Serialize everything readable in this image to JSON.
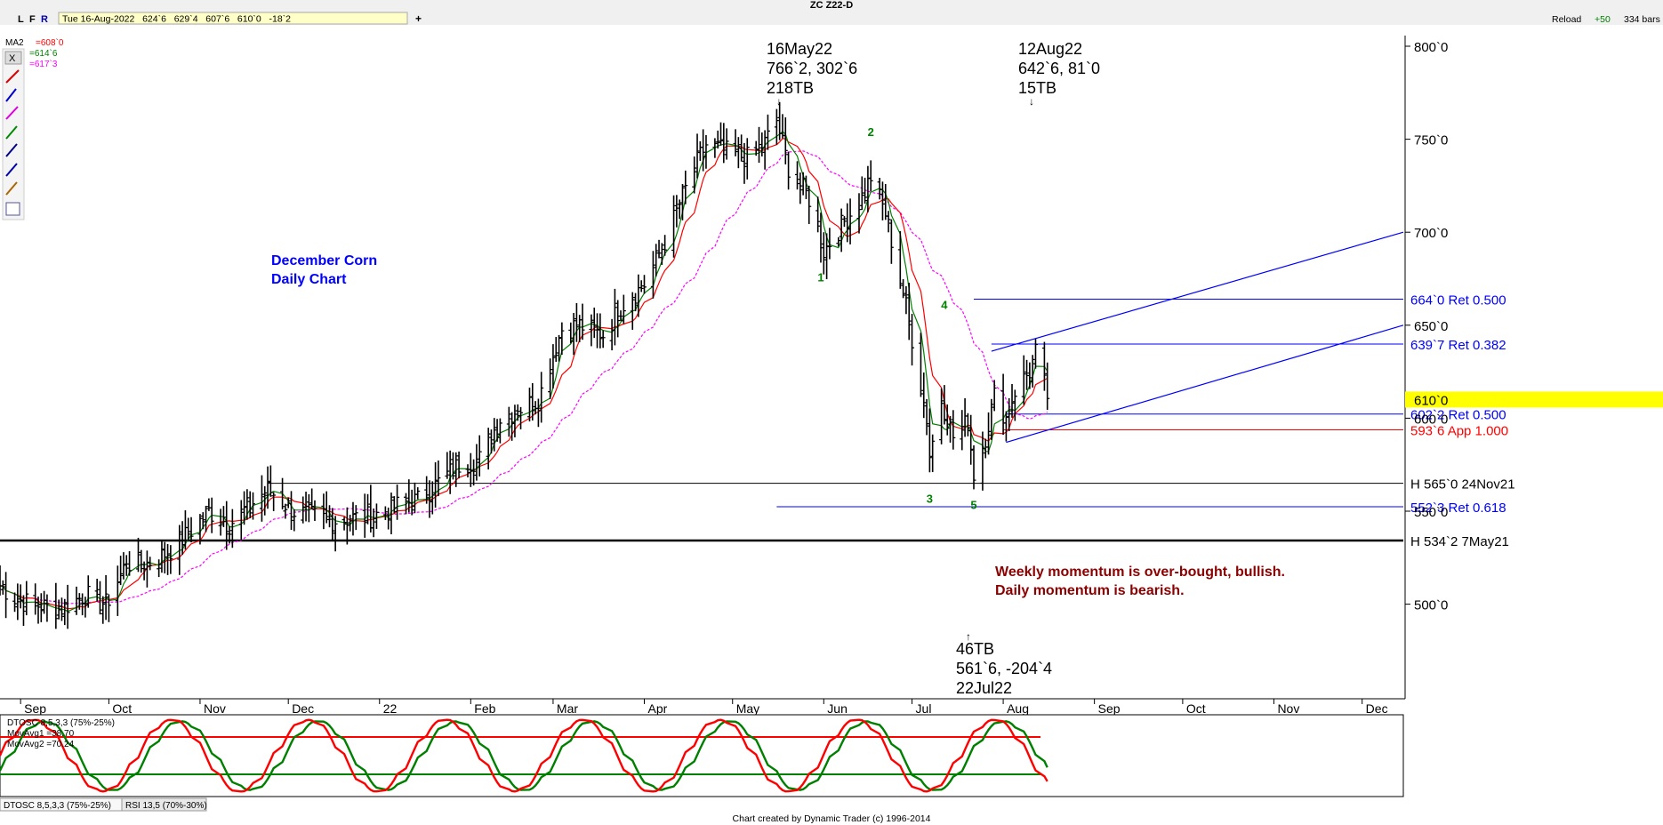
{
  "window": {
    "title": "ZC Z22-D"
  },
  "toolbar": {
    "buttons": [
      "L",
      "F",
      "R"
    ],
    "quote": "Tue 16-Aug-2022   624`6   629`4   607`6   610`0   -18`2",
    "reload": "Reload",
    "plus": "+50",
    "bars": "334 bars"
  },
  "legend": {
    "ma_name": "MA2",
    "ma1": "=608`0",
    "ma2": "=614`6",
    "ma3": "=617`3",
    "ma1_color": "#ff0000",
    "ma2_color": "#008000",
    "ma3_color": "#ff00ff"
  },
  "annotations": {
    "title_line1": "December Corn",
    "title_line2": "Daily Chart",
    "high_date": "16May22",
    "high_price": "766`2, 302`6",
    "high_tb": "218TB",
    "aug_date": "12Aug22",
    "aug_price": "642`6, 81`0",
    "aug_tb": "15TB",
    "low_tb": "46TB",
    "low_price": "561`6, -204`4",
    "low_date": "22Jul22",
    "momentum_line1": "Weekly momentum is over-bought, bullish.",
    "momentum_line2": "Daily momentum is bearish.",
    "wave_labels": [
      "1",
      "2",
      "3",
      "4",
      "5"
    ]
  },
  "levels": [
    {
      "label": "664`0 Ret 0.500",
      "color": "#0000ff"
    },
    {
      "label": "639`7 Ret 0.382",
      "color": "#0000ff"
    },
    {
      "label": "602`2 Ret 0.500",
      "color": "#0000ff"
    },
    {
      "label": "593`6 App 1.000",
      "color": "#ff0000"
    },
    {
      "label": "H 565`0 24Nov21",
      "color": "#000000"
    },
    {
      "label": "552`3 Ret 0.618",
      "color": "#0000ff"
    },
    {
      "label": "H 534`2 7May21",
      "color": "#000000"
    }
  ],
  "price_axis": {
    "ticks": [
      "800`0",
      "750`0",
      "700`0",
      "650`0",
      "600`0",
      "550`0",
      "500`0"
    ],
    "current": "610`0"
  },
  "time_axis": {
    "ticks": [
      "Sep",
      "Oct",
      "Nov",
      "Dec",
      "22",
      "Feb",
      "Mar",
      "Apr",
      "May",
      "Jun",
      "Jul",
      "Aug",
      "Sep",
      "Oct",
      "Nov",
      "Dec"
    ]
  },
  "oscillator": {
    "title": "DTOSC 8,5,3,3 (75%-25%)",
    "mov1": "MovAvg1 =38.70",
    "mov2": "MovAvg2 =70.24",
    "tabs": [
      "DTOSC 8,5,3,3 (75%-25%)",
      "RSI 13,5 (70%-30%)"
    ]
  },
  "footer": "Chart created by Dynamic Trader  (c)  1996-2014",
  "chart_data": {
    "type": "ohlc-bar",
    "symbol": "ZC Z22-D",
    "ylim": [
      455,
      805
    ],
    "yticks": [
      800,
      750,
      700,
      650,
      600,
      550,
      500
    ],
    "x_range": [
      "2021-08-25",
      "2022-12-15"
    ],
    "control_points": [
      [
        "2021-08-25",
        510
      ],
      [
        "2021-08-31",
        502
      ],
      [
        "2021-09-14",
        497
      ],
      [
        "2021-09-23",
        505
      ],
      [
        "2021-09-30",
        500
      ],
      [
        "2021-10-07",
        522
      ],
      [
        "2021-10-14",
        522
      ],
      [
        "2021-10-21",
        528
      ],
      [
        "2021-10-28",
        538
      ],
      [
        "2021-11-04",
        550
      ],
      [
        "2021-11-11",
        543
      ],
      [
        "2021-11-24",
        562
      ],
      [
        "2021-12-03",
        550
      ],
      [
        "2021-12-15",
        545
      ],
      [
        "2021-12-29",
        547
      ],
      [
        "2022-01-07",
        553
      ],
      [
        "2022-01-14",
        556
      ],
      [
        "2022-01-28",
        575
      ],
      [
        "2022-02-04",
        578
      ],
      [
        "2022-02-11",
        600
      ],
      [
        "2022-02-24",
        610
      ],
      [
        "2022-03-04",
        648
      ],
      [
        "2022-03-10",
        650
      ],
      [
        "2022-03-18",
        645
      ],
      [
        "2022-03-24",
        660
      ],
      [
        "2022-04-01",
        672
      ],
      [
        "2022-04-08",
        695
      ],
      [
        "2022-04-18",
        735
      ],
      [
        "2022-04-22",
        747
      ],
      [
        "2022-04-29",
        743
      ],
      [
        "2022-05-06",
        740
      ],
      [
        "2022-05-12",
        748
      ],
      [
        "2022-05-16",
        760
      ],
      [
        "2022-05-20",
        735
      ],
      [
        "2022-05-27",
        718
      ],
      [
        "2022-06-01",
        690
      ],
      [
        "2022-06-09",
        708
      ],
      [
        "2022-06-14",
        718
      ],
      [
        "2022-06-17",
        730
      ],
      [
        "2022-06-22",
        710
      ],
      [
        "2022-06-29",
        660
      ],
      [
        "2022-07-06",
        600
      ],
      [
        "2022-07-07",
        580
      ],
      [
        "2022-07-11",
        610
      ],
      [
        "2022-07-15",
        590
      ],
      [
        "2022-07-20",
        598
      ],
      [
        "2022-07-22",
        570
      ],
      [
        "2022-07-26",
        590
      ],
      [
        "2022-07-29",
        612
      ],
      [
        "2022-08-02",
        600
      ],
      [
        "2022-08-05",
        615
      ],
      [
        "2022-08-10",
        625
      ],
      [
        "2022-08-12",
        635
      ],
      [
        "2022-08-16",
        612
      ]
    ],
    "level_prices": [
      664,
      639.875,
      602.25,
      593.75,
      565,
      552.375,
      534.25
    ],
    "swings": [
      {
        "label": "1",
        "date": "2022-05-31",
        "price": 684
      },
      {
        "label": "2",
        "date": "2022-06-17",
        "price": 748
      },
      {
        "label": "3",
        "date": "2022-07-07",
        "price": 565
      },
      {
        "label": "4",
        "date": "2022-07-12",
        "price": 655
      },
      {
        "label": "5",
        "date": "2022-07-22",
        "price": 561.75
      }
    ],
    "channel": {
      "line1": [
        [
          "2022-07-28",
          636
        ],
        [
          "2022-12-15",
          700
        ]
      ],
      "line2": [
        [
          "2022-08-02",
          587
        ],
        [
          "2022-12-15",
          650
        ]
      ]
    },
    "oscillator_levels": [
      75,
      25
    ]
  }
}
